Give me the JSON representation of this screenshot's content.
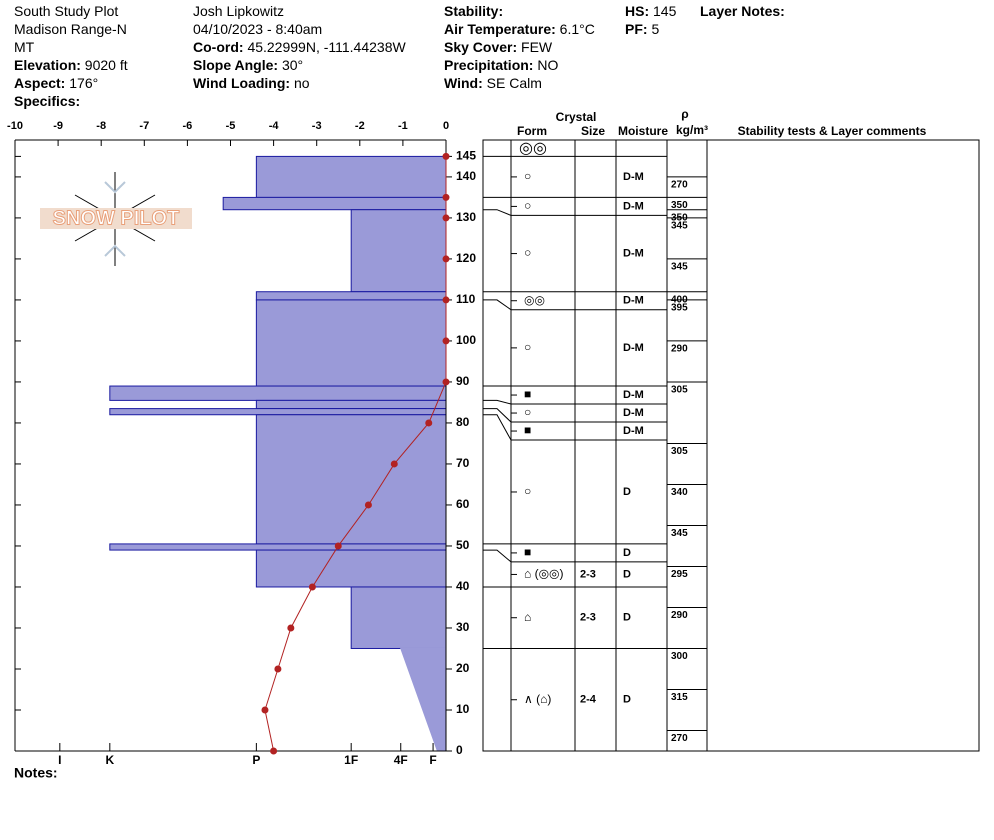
{
  "header": {
    "columns": [
      [
        {
          "value": "South Study Plot"
        },
        {
          "value": "Madison Range-N"
        },
        {
          "value": "MT"
        },
        {
          "label": "Elevation:",
          "value": "9020 ft"
        },
        {
          "label": "Aspect:",
          "value": "176°"
        },
        {
          "label": "Specifics:"
        }
      ],
      [
        {
          "value": "Josh Lipkowitz"
        },
        {
          "value": "04/10/2023 - 8:40am"
        },
        {
          "label": "Co-ord:",
          "value": "45.22999N, -111.44238W"
        },
        {
          "label": "Slope Angle:",
          "value": "30°"
        },
        {
          "label": "Wind Loading:",
          "value": "no"
        }
      ],
      [
        {
          "label": "Stability:"
        },
        {
          "label": "Air Temperature:",
          "value": "6.1°C"
        },
        {
          "label": "Sky Cover:",
          "value": "FEW"
        },
        {
          "label": "Precipitation:",
          "value": "NO"
        },
        {
          "label": "Wind:",
          "value": "SE Calm"
        }
      ],
      [
        {
          "label": "HS:",
          "value": "145"
        },
        {
          "label": "PF:",
          "value": "5"
        }
      ],
      [
        {
          "label": "Layer Notes:"
        }
      ]
    ]
  },
  "logo": "SNOW PILOT",
  "notes_label": "Notes:",
  "table_headers": {
    "crystal": "Crystal",
    "form": "Form",
    "size": "Size",
    "moisture": "Moisture",
    "rho": "ρ",
    "density_unit": "kg/m³",
    "comments": "Stability tests & Layer comments"
  },
  "chart_data": {
    "type": "profile",
    "xlim": [
      -10,
      0
    ],
    "xticks": [
      -10,
      -9,
      -8,
      -7,
      -6,
      -5,
      -4,
      -3,
      -2,
      -1,
      0
    ],
    "ylim": [
      0,
      149
    ],
    "yticks": [
      0,
      10,
      20,
      30,
      40,
      50,
      60,
      70,
      80,
      90,
      100,
      110,
      120,
      130,
      140,
      145
    ],
    "hardness_ticks": [
      {
        "value": -8.96,
        "label": "I"
      },
      {
        "value": -7.8,
        "label": "K"
      },
      {
        "value": -4.4,
        "label": "P"
      },
      {
        "value": -2.2,
        "label": "1F"
      },
      {
        "value": -1.05,
        "label": "4F"
      },
      {
        "value": -0.3,
        "label": "F"
      }
    ],
    "surface_form": "◎◎",
    "layers": [
      {
        "top": 145,
        "bottom": 135,
        "hardness": -4.4,
        "form": "○",
        "moisture": "D-M"
      },
      {
        "top": 135,
        "bottom": 132,
        "hardness": -5.17,
        "form": "○",
        "moisture": "D-M"
      },
      {
        "top": 132,
        "bottom": 112,
        "hardness": -2.2,
        "form": "○",
        "moisture": "D-M"
      },
      {
        "top": 112,
        "bottom": 110,
        "hardness": -4.4,
        "form": "◎◎",
        "moisture": "D-M"
      },
      {
        "top": 110,
        "bottom": 89,
        "hardness": -4.4,
        "form": "○",
        "moisture": "D-M"
      },
      {
        "top": 89,
        "bottom": 85.5,
        "hardness": -7.8,
        "form": "■",
        "moisture": "D-M"
      },
      {
        "top": 85.5,
        "bottom": 83.5,
        "hardness": -4.4,
        "form": "○",
        "moisture": "D-M"
      },
      {
        "top": 83.5,
        "bottom": 82,
        "hardness": -7.8,
        "form": "■",
        "moisture": "D-M"
      },
      {
        "top": 82,
        "bottom": 50.5,
        "hardness": -4.4,
        "form": "○",
        "moisture": "D"
      },
      {
        "top": 50.5,
        "bottom": 49,
        "hardness": -7.8,
        "form": "■",
        "moisture": "D"
      },
      {
        "top": 49,
        "bottom": 40,
        "hardness": -4.4,
        "form": "⌂ (◎◎)",
        "size": "2-3",
        "moisture": "D"
      },
      {
        "top": 40,
        "bottom": 25,
        "hardness": -2.2,
        "form": "⌂",
        "size": "2-3",
        "moisture": "D"
      },
      {
        "top": 25,
        "bottom": 0,
        "hardness": -1.05,
        "hardness_bottom": -0.2,
        "form": "∧ (⌂)",
        "size": "2-4",
        "moisture": "D"
      }
    ],
    "temperature": {
      "heights": [
        145,
        135,
        130,
        120,
        110,
        100,
        90,
        80,
        70,
        60,
        50,
        40,
        30,
        20,
        10,
        0
      ],
      "values": [
        0,
        0,
        0,
        0,
        0,
        0,
        0,
        -0.4,
        -1.2,
        -1.8,
        -2.5,
        -3.1,
        -3.6,
        -3.9,
        -4.2,
        -4.0
      ],
      "color": "#b22222"
    },
    "density": {
      "heights": [
        140,
        135,
        132,
        130,
        120,
        112,
        110,
        100,
        90,
        75,
        65,
        55,
        45,
        35,
        25,
        15,
        5
      ],
      "values": [
        270,
        350,
        350,
        345,
        345,
        400,
        395,
        290,
        305,
        305,
        340,
        345,
        295,
        290,
        300,
        315,
        270
      ]
    },
    "bar_color": "#9a9ad8",
    "bar_stroke": "#1a1aa0"
  }
}
